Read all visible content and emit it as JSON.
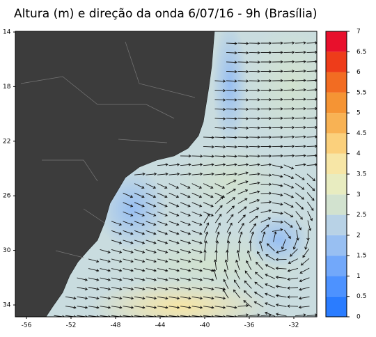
{
  "title": "Altura (m) e direção da onda  6/07/16 - 9h (Brasília)",
  "map": {
    "lat_labels": [
      "14",
      "18",
      "22",
      "26",
      "30",
      "34"
    ],
    "lon_labels": [
      "-56",
      "-52",
      "-48",
      "-44",
      "-40",
      "-36",
      "-32"
    ]
  },
  "colorbar": {
    "labels": [
      "0",
      "0.5",
      "1",
      "1.5",
      "2",
      "2.5",
      "3",
      "3.5",
      "4",
      "4.5",
      "5",
      "5.5",
      "6",
      "6.5",
      "7"
    ],
    "colors": [
      "#2a7cff",
      "#4d92ff",
      "#72a8fa",
      "#98bff2",
      "#b8d2e6",
      "#d2e2cf",
      "#e8ecc0",
      "#f7e6a6",
      "#fbd07c",
      "#f8b254",
      "#f59434",
      "#f26c22",
      "#ee3c1a",
      "#e8102c"
    ]
  }
}
